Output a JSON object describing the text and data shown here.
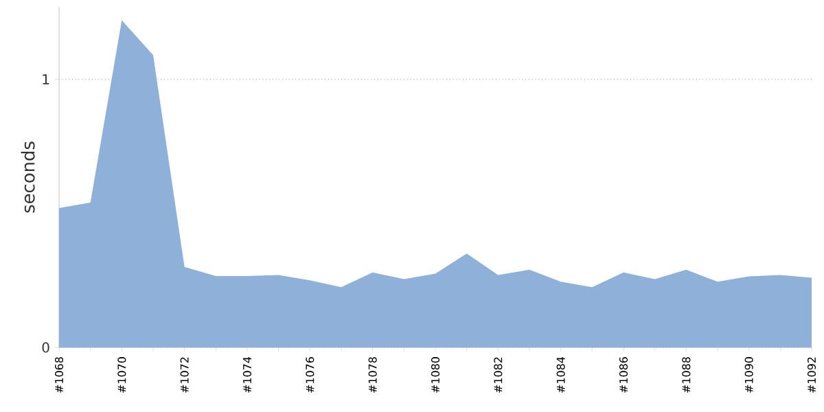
{
  "chart_data": {
    "type": "area",
    "ylabel": "seconds",
    "categories": [
      "#1068",
      null,
      "#1070",
      null,
      "#1072",
      null,
      "#1074",
      null,
      "#1076",
      null,
      "#1078",
      null,
      "#1080",
      null,
      "#1082",
      null,
      "#1084",
      null,
      "#1086",
      null,
      "#1088",
      null,
      "#1090",
      null,
      "#1092"
    ],
    "series": [
      {
        "color": "#8fb0d9",
        "values": [
          0.52,
          0.54,
          1.22,
          1.09,
          0.3,
          0.266,
          0.266,
          0.27,
          0.25,
          0.225,
          0.28,
          0.255,
          0.275,
          0.35,
          0.27,
          0.29,
          0.245,
          0.225,
          0.28,
          0.255,
          0.29,
          0.245,
          0.265,
          0.27,
          0.26
        ]
      }
    ],
    "ylim": [
      0,
      1.27
    ],
    "yticks": [
      0,
      1
    ],
    "grid": "y"
  }
}
